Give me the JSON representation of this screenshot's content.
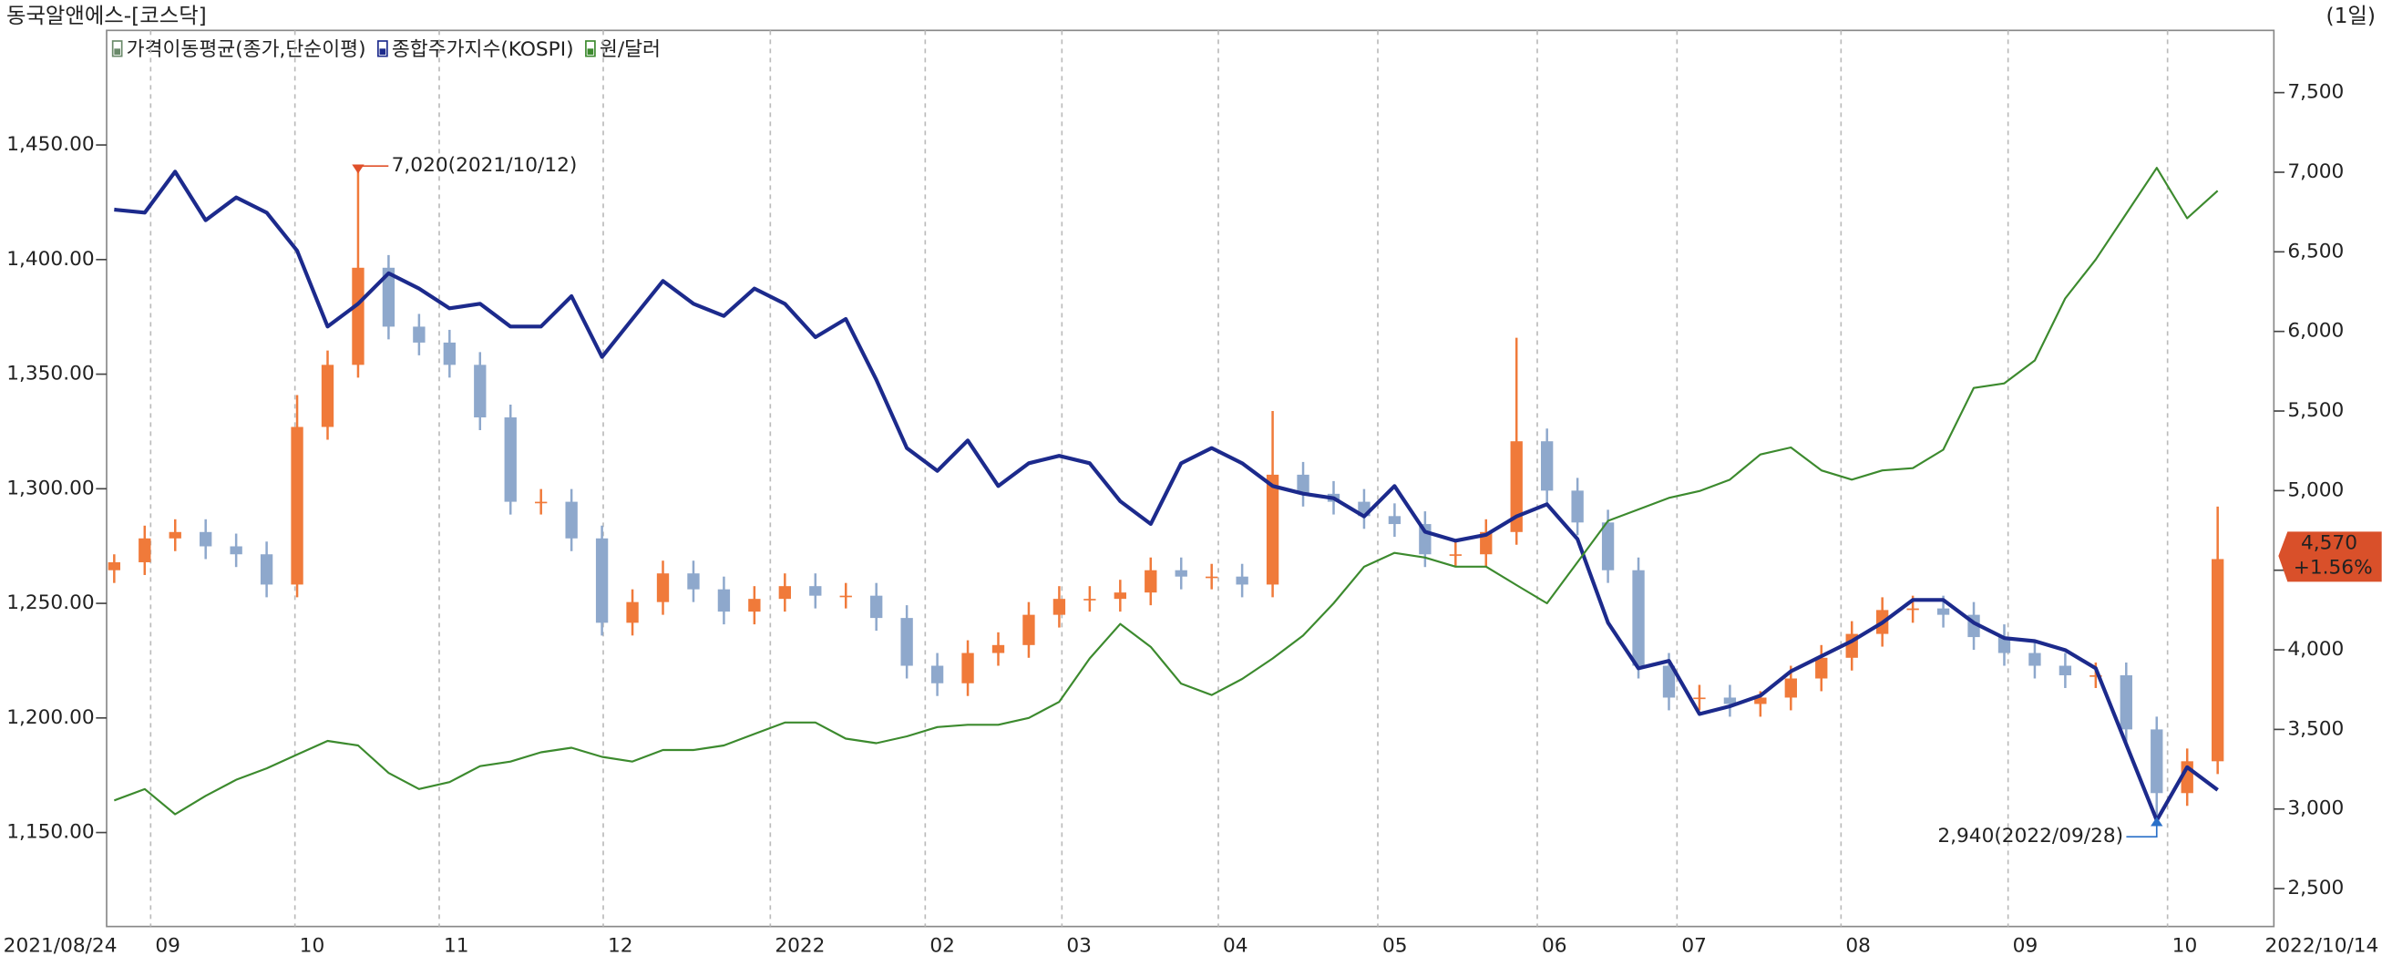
{
  "chart_data": {
    "type": "candlestick",
    "title": "동국알앤에스-[코스닥]",
    "period": "(1일)",
    "x_labels": [
      "2021/08/24",
      "09",
      "10",
      "11",
      "12",
      "2022",
      "02",
      "03",
      "04",
      "05",
      "06",
      "07",
      "08",
      "09",
      "10",
      "2022/10/14"
    ],
    "ylim": [
      1109,
      1500
    ],
    "yticks": [
      {
        "value": 1150,
        "label": "1,150.00"
      },
      {
        "value": 1200,
        "label": "1,200.00"
      },
      {
        "value": 1250,
        "label": "1,250.00"
      },
      {
        "value": 1300,
        "label": "1,300.00"
      },
      {
        "value": 1350,
        "label": "1,350.00"
      },
      {
        "value": 1400,
        "label": "1,400.00"
      },
      {
        "value": 1450,
        "label": "1,450.00"
      }
    ],
    "y2lim": [
      2262,
      7891
    ],
    "y2ticks": [
      {
        "value": 2500,
        "label": "2,500"
      },
      {
        "value": 3000,
        "label": "3,000"
      },
      {
        "value": 3500,
        "label": "3,500"
      },
      {
        "value": 4000,
        "label": "4,000"
      },
      {
        "value": 4500,
        "label": "4,500"
      },
      {
        "value": 5000,
        "label": "5,000"
      },
      {
        "value": 5500,
        "label": "5,500"
      },
      {
        "value": 6000,
        "label": "6,000"
      },
      {
        "value": 6500,
        "label": "6,500"
      },
      {
        "value": 7000,
        "label": "7,000"
      },
      {
        "value": 7500,
        "label": "7,500"
      }
    ],
    "up_color": "#f07a3a",
    "down_color": "#8ea8cc",
    "series": [
      {
        "name": "가격이동평균(종가,단순이평)",
        "type": "candlestick",
        "axis": "y2",
        "color": "#6a8a6a",
        "open": [
          4500,
          4550,
          4700,
          4740,
          4650,
          4600,
          4410,
          5400,
          5790,
          6400,
          6030,
          5930,
          5790,
          5460,
          4930,
          4930,
          4700,
          4170,
          4300,
          4480,
          4380,
          4240,
          4320,
          4400,
          4340,
          4340,
          4200,
          3900,
          3790,
          3980,
          4030,
          4220,
          4320,
          4320,
          4360,
          4500,
          4460,
          4460,
          4410,
          5100,
          4980,
          4930,
          4840,
          4790,
          4600,
          4600,
          4740,
          5310,
          5000,
          4800,
          4500,
          3900,
          3700,
          3700,
          3660,
          3700,
          3820,
          3950,
          4100,
          4250,
          4260,
          4220,
          4080,
          3980,
          3900,
          3840,
          3840,
          3500,
          3100,
          3300
        ],
        "high": [
          4600,
          4780,
          4820,
          4820,
          4730,
          4680,
          5600,
          5880,
          7020,
          6480,
          6110,
          6010,
          5870,
          5540,
          5010,
          5010,
          4780,
          4380,
          4560,
          4560,
          4460,
          4400,
          4480,
          4480,
          4420,
          4420,
          4280,
          3980,
          4060,
          4110,
          4300,
          4400,
          4400,
          4440,
          4580,
          4580,
          4540,
          4540,
          5500,
          5180,
          5060,
          5010,
          4920,
          4870,
          4680,
          4820,
          5960,
          5390,
          5080,
          4880,
          4580,
          3980,
          3780,
          3780,
          3740,
          3900,
          4030,
          4180,
          4330,
          4340,
          4340,
          4300,
          4160,
          4060,
          3980,
          3920,
          3920,
          3580,
          3380,
          4900
        ],
        "low": [
          4420,
          4470,
          4620,
          4570,
          4520,
          4330,
          4330,
          5320,
          5710,
          5950,
          5850,
          5710,
          5380,
          4850,
          4850,
          4620,
          4090,
          4090,
          4220,
          4300,
          4160,
          4160,
          4240,
          4260,
          4260,
          4120,
          3820,
          3710,
          3710,
          3900,
          3950,
          4140,
          4240,
          4240,
          4280,
          4380,
          4380,
          4330,
          4330,
          4900,
          4850,
          4760,
          4710,
          4520,
          4520,
          4520,
          4660,
          4920,
          4720,
          4420,
          3820,
          3620,
          3620,
          3580,
          3580,
          3620,
          3740,
          3870,
          4020,
          4170,
          4140,
          4000,
          3900,
          3820,
          3760,
          3760,
          3420,
          2940,
          3020,
          3220
        ],
        "close": [
          4550,
          4700,
          4740,
          4650,
          4600,
          4410,
          5400,
          5790,
          6400,
          6030,
          5930,
          5790,
          5460,
          4930,
          4930,
          4700,
          4170,
          4300,
          4480,
          4380,
          4240,
          4320,
          4400,
          4340,
          4340,
          4200,
          3900,
          3790,
          3980,
          4030,
          4220,
          4320,
          4320,
          4360,
          4500,
          4460,
          4460,
          4410,
          5100,
          4980,
          4930,
          4840,
          4790,
          4600,
          4600,
          4740,
          5310,
          5000,
          4800,
          4500,
          3900,
          3700,
          3700,
          3660,
          3700,
          3820,
          3950,
          4100,
          4250,
          4260,
          4220,
          4080,
          3980,
          3900,
          3840,
          3840,
          3500,
          3100,
          3300,
          4570
        ]
      },
      {
        "name": "종합주가지수(KOSPI)",
        "type": "line",
        "axis": "y2",
        "color": "#1c2a8c",
        "values": [
          6765,
          6746,
          7004,
          6698,
          6842,
          6746,
          6508,
          6031,
          6174,
          6365,
          6269,
          6145,
          6174,
          6031,
          6031,
          6221,
          5840,
          6078,
          6317,
          6174,
          6097,
          6269,
          6174,
          5964,
          6078,
          5697,
          5267,
          5124,
          5315,
          5029,
          5172,
          5219,
          5172,
          4933,
          4790,
          5172,
          5267,
          5172,
          5029,
          4981,
          4952,
          4838,
          5029,
          4742,
          4685,
          4723,
          4838,
          4914,
          4695,
          4170,
          3884,
          3931,
          3597,
          3645,
          3712,
          3865,
          3960,
          4055,
          4170,
          4313,
          4313,
          4170,
          4074,
          4055,
          3998,
          3884,
          3406,
          2929,
          3263,
          3120
        ]
      },
      {
        "name": "원/달러",
        "type": "line",
        "color": "#3c8a2e",
        "values": [
          1164,
          1169,
          1158,
          1166,
          1173,
          1178,
          1184,
          1190,
          1188,
          1176,
          1169,
          1172,
          1179,
          1181,
          1185,
          1187,
          1183,
          1181,
          1186,
          1186,
          1188,
          1193,
          1198,
          1198,
          1191,
          1189,
          1192,
          1196,
          1197,
          1197,
          1200,
          1207,
          1226,
          1241,
          1231,
          1215,
          1210,
          1217,
          1226,
          1236,
          1250,
          1266,
          1272,
          1270,
          1266,
          1266,
          1258,
          1250,
          1268,
          1286,
          1291,
          1296,
          1299,
          1304,
          1315,
          1318,
          1308,
          1304,
          1308,
          1309,
          1317,
          1344,
          1346,
          1356,
          1383,
          1400,
          1420,
          1440,
          1418,
          1430
        ]
      }
    ],
    "annotations": [
      {
        "text": "7,020(2021/10/12)",
        "color": "#e0502a"
      },
      {
        "text": "2,940(2022/09/28)",
        "color": "#2a70c8"
      }
    ],
    "last_price": {
      "label": "4,570",
      "change": "+1.56%",
      "color": "#d9502a"
    },
    "grid": true
  }
}
